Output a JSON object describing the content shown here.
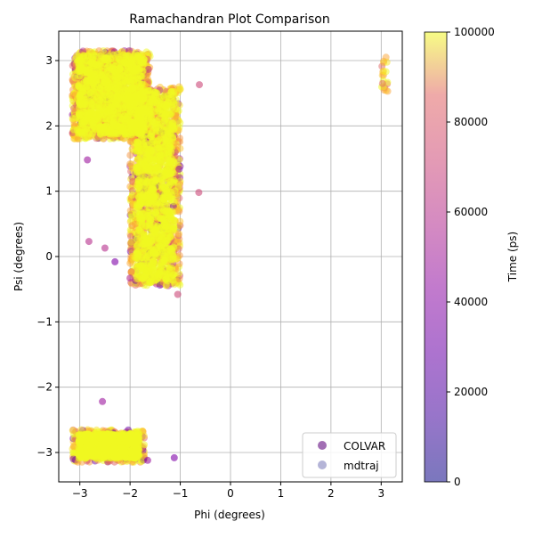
{
  "chart_data": {
    "type": "scatter",
    "title": "Ramachandran Plot Comparison",
    "xlabel": "Phi (degrees)",
    "ylabel": "Psi (degrees)",
    "xlim": [
      -3.42,
      3.42
    ],
    "ylim": [
      -3.45,
      3.45
    ],
    "xticks": [
      -3,
      -2,
      -1,
      0,
      1,
      2,
      3
    ],
    "xtick_labels": [
      "−3",
      "−2",
      "−1",
      "0",
      "1",
      "2",
      "3"
    ],
    "yticks": [
      -3,
      -2,
      -1,
      0,
      1,
      2,
      3
    ],
    "ytick_labels": [
      "−3",
      "−2",
      "−1",
      "0",
      "1",
      "2",
      "3"
    ],
    "grid": true,
    "legend_position": "lower-right",
    "colormap": "plasma",
    "colorbar": {
      "label": "Time (ps)",
      "range": [
        0,
        100000
      ],
      "ticks": [
        0,
        20000,
        40000,
        60000,
        80000,
        100000
      ],
      "tick_labels": [
        "0",
        "20000",
        "40000",
        "60000",
        "80000",
        "100000"
      ]
    },
    "series": [
      {
        "name": "COLVAR",
        "marker_color": "#7b3294",
        "alpha": 0.7
      },
      {
        "name": "mdtraj",
        "marker_color": "#6a6ab0",
        "alpha": 0.5
      }
    ],
    "regions": [
      {
        "phi_range": [
          -3.15,
          -1.6
        ],
        "psi_range": [
          1.8,
          3.15
        ],
        "approx_points": 1400
      },
      {
        "phi_range": [
          -2.0,
          -1.0
        ],
        "psi_range": [
          -0.45,
          2.6
        ],
        "approx_points": 1300
      },
      {
        "phi_range": [
          -3.15,
          -1.7
        ],
        "psi_range": [
          -3.15,
          -2.65
        ],
        "approx_points": 400
      },
      {
        "phi_range": [
          3.0,
          3.14
        ],
        "psi_range": [
          2.5,
          3.1
        ],
        "approx_points": 20
      }
    ],
    "outliers": [
      {
        "x": -2.55,
        "y": -2.22
      },
      {
        "x": -0.63,
        "y": 0.98
      },
      {
        "x": -0.62,
        "y": 2.63
      },
      {
        "x": -2.82,
        "y": 0.23
      },
      {
        "x": -1.12,
        "y": -3.08
      },
      {
        "x": -1.65,
        "y": -3.12
      },
      {
        "x": -2.85,
        "y": 1.48
      },
      {
        "x": -2.0,
        "y": -0.33
      },
      {
        "x": -1.05,
        "y": -0.58
      },
      {
        "x": -2.5,
        "y": 0.13
      },
      {
        "x": -2.3,
        "y": -0.08
      }
    ]
  }
}
